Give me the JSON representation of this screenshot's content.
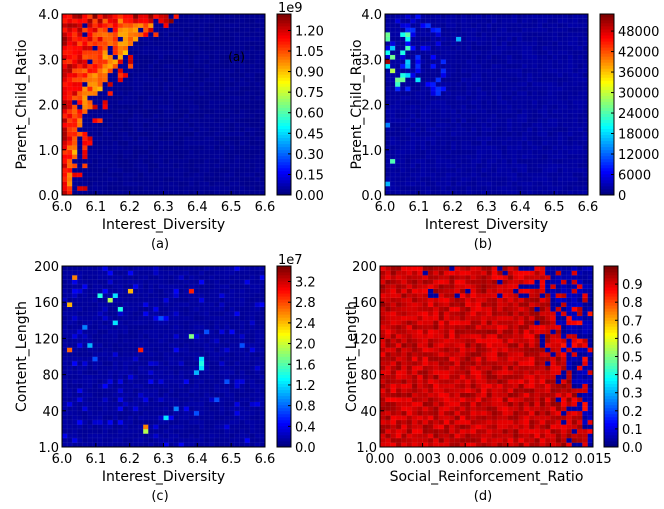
{
  "chart_data": [
    {
      "type": "heatmap",
      "caption": "(a)",
      "xlabel": "Interest_Diversity",
      "ylabel": "Parent_Child_Ratio",
      "xlim": [
        6.0,
        6.6
      ],
      "ylim": [
        0.0,
        4.0
      ],
      "xticks": [
        "6.0",
        "6.1",
        "6.2",
        "6.3",
        "6.4",
        "6.5",
        "6.6"
      ],
      "yticks": [
        "0.0",
        "1.0",
        "2.0",
        "3.0",
        "4.0"
      ],
      "colorbar_ticks": [
        "0.00",
        "0.15",
        "0.30",
        "0.45",
        "0.60",
        "0.75",
        "0.90",
        "1.05",
        "1.20"
      ],
      "colorbar_exponent": "1e9",
      "colorbar_range": [
        0,
        1.32
      ],
      "annotation": "(a)",
      "pattern": "dense high values near low Interest_Diversity (6.0-6.2) and high Parent_Child_Ratio, decaying toward higher Interest_Diversity; background near zero"
    },
    {
      "type": "heatmap",
      "caption": "(b)",
      "xlabel": "Interest_Diversity",
      "ylabel": "Parent_Child_Ratio",
      "xlim": [
        6.0,
        6.6
      ],
      "ylim": [
        0.0,
        4.0
      ],
      "xticks": [
        "6.0",
        "6.1",
        "6.2",
        "6.3",
        "6.4",
        "6.5",
        "6.6"
      ],
      "yticks": [
        "0.0",
        "1.0",
        "2.0",
        "3.0",
        "4.0"
      ],
      "colorbar_ticks": [
        "0",
        "6000",
        "12000",
        "18000",
        "24000",
        "30000",
        "36000",
        "42000",
        "48000"
      ],
      "colorbar_exponent": "",
      "colorbar_range": [
        0,
        53000
      ],
      "pattern": "mostly low values; a few bright cells near Interest_Diversity 6.0-6.1 and Parent_Child_Ratio 2.5-3.5, one red cell near (6.0, 3.0)"
    },
    {
      "type": "heatmap",
      "caption": "(c)",
      "xlabel": "Interest_Diversity",
      "ylabel": "Content_Length",
      "xlim": [
        6.0,
        6.6
      ],
      "ylim": [
        1.0,
        200
      ],
      "xticks": [
        "6.0",
        "6.1",
        "6.2",
        "6.3",
        "6.4",
        "6.5",
        "6.6"
      ],
      "yticks": [
        "1.0",
        "40",
        "80",
        "120",
        "160",
        "200"
      ],
      "colorbar_ticks": [
        "0.0",
        "0.4",
        "0.8",
        "1.2",
        "1.6",
        "2.0",
        "2.4",
        "2.8",
        "3.2"
      ],
      "colorbar_exponent": "1e7",
      "colorbar_range": [
        0,
        3.5
      ],
      "pattern": "sparse isolated bright cells scattered on a near-zero background; a vertical streak near Interest_Diversity 6.42"
    },
    {
      "type": "heatmap",
      "caption": "(d)",
      "xlabel": "Social_Reinforcement_Ratio",
      "ylabel": "Content_Length",
      "xlim": [
        0.0,
        0.015
      ],
      "ylim": [
        1.0,
        200
      ],
      "xticks": [
        "0.00",
        "0.003",
        "0.006",
        "0.009",
        "0.012",
        "0.015"
      ],
      "yticks": [
        "1.0",
        "40",
        "80",
        "120",
        "160",
        "200"
      ],
      "colorbar_ticks": [
        "0.0",
        "0.1",
        "0.2",
        "0.3",
        "0.4",
        "0.5",
        "0.6",
        "0.7",
        "0.8",
        "0.9"
      ],
      "colorbar_exponent": "",
      "colorbar_range": [
        0,
        1.0
      ],
      "pattern": "nearly all cells high (0.85-1.0) up to Social_Reinforcement_Ratio ~0.013; a low-value region in the upper-right beyond ~0.012"
    }
  ]
}
